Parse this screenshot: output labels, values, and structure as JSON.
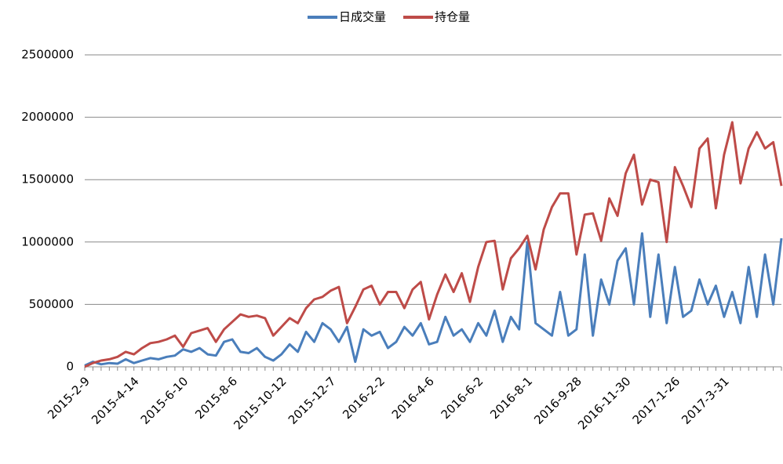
{
  "chart_data": {
    "type": "line",
    "categories": [
      "2015-2-9",
      null,
      null,
      null,
      null,
      null,
      "2015-4-14",
      null,
      null,
      null,
      null,
      null,
      "2015-6-10",
      null,
      null,
      null,
      null,
      null,
      "2015-8-6",
      null,
      null,
      null,
      null,
      null,
      "2015-10-12",
      null,
      null,
      null,
      null,
      null,
      "2015-12-7",
      null,
      null,
      null,
      null,
      null,
      "2016-2-2",
      null,
      null,
      null,
      null,
      null,
      "2016-4-6",
      null,
      null,
      null,
      null,
      null,
      "2016-6-2",
      null,
      null,
      null,
      null,
      null,
      "2016-8-1",
      null,
      null,
      null,
      null,
      null,
      "2016-9-28",
      null,
      null,
      null,
      null,
      null,
      "2016-11-30",
      null,
      null,
      null,
      null,
      null,
      "2017-1-26",
      null,
      null,
      null,
      null,
      null,
      "2017-3-31",
      null,
      null,
      null,
      null,
      null,
      null,
      null
    ],
    "series": [
      {
        "name": "日成交量",
        "color": "#4a7ebb",
        "values": [
          10000,
          40000,
          20000,
          30000,
          25000,
          60000,
          30000,
          50000,
          70000,
          60000,
          80000,
          90000,
          140000,
          120000,
          150000,
          100000,
          90000,
          200000,
          220000,
          120000,
          110000,
          150000,
          80000,
          50000,
          100000,
          180000,
          120000,
          280000,
          200000,
          350000,
          300000,
          200000,
          320000,
          40000,
          300000,
          250000,
          280000,
          150000,
          200000,
          320000,
          250000,
          350000,
          180000,
          200000,
          400000,
          250000,
          300000,
          200000,
          350000,
          250000,
          450000,
          200000,
          400000,
          300000,
          1000000,
          350000,
          300000,
          250000,
          600000,
          250000,
          300000,
          900000,
          250000,
          700000,
          500000,
          850000,
          950000,
          500000,
          1070000,
          400000,
          900000,
          350000,
          800000,
          400000,
          450000,
          700000,
          500000,
          650000,
          400000,
          600000,
          350000,
          800000,
          400000,
          900000,
          500000,
          1030000
        ]
      },
      {
        "name": "持仓量",
        "color": "#be4b48",
        "values": [
          0,
          30000,
          50000,
          60000,
          80000,
          120000,
          100000,
          150000,
          190000,
          200000,
          220000,
          250000,
          160000,
          270000,
          290000,
          310000,
          200000,
          300000,
          360000,
          420000,
          400000,
          410000,
          390000,
          250000,
          320000,
          390000,
          350000,
          470000,
          540000,
          560000,
          610000,
          640000,
          350000,
          480000,
          620000,
          650000,
          500000,
          600000,
          600000,
          470000,
          620000,
          680000,
          380000,
          580000,
          740000,
          600000,
          750000,
          520000,
          800000,
          1000000,
          1010000,
          620000,
          870000,
          950000,
          1050000,
          780000,
          1100000,
          1280000,
          1390000,
          1390000,
          900000,
          1220000,
          1230000,
          1010000,
          1350000,
          1210000,
          1550000,
          1700000,
          1300000,
          1500000,
          1480000,
          1000000,
          1600000,
          1450000,
          1280000,
          1750000,
          1830000,
          1270000,
          1700000,
          1960000,
          1470000,
          1750000,
          1880000,
          1750000,
          1800000,
          1450000
        ]
      }
    ],
    "ylim": [
      0,
      2500000
    ],
    "yticks": [
      0,
      500000,
      1000000,
      1500000,
      2000000,
      2500000
    ],
    "grid": true,
    "legend": "top"
  }
}
